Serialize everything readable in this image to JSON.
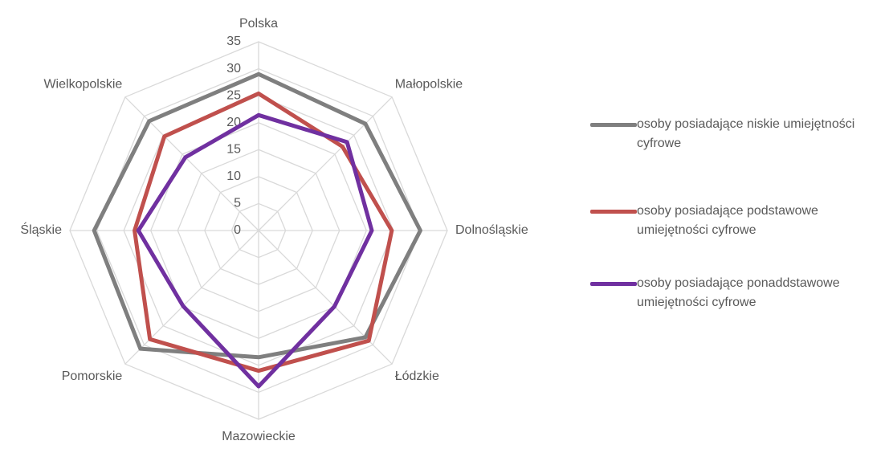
{
  "chart_data": {
    "type": "radar",
    "categories": [
      "Polska",
      "Małopolskie",
      "Dolnośląskie",
      "Łódzkie",
      "Mazowieckie",
      "Pomorskie",
      "Śląskie",
      "Wielkopolskie"
    ],
    "series": [
      {
        "name": "osoby posiadające niskie umiejętności cyfrowe",
        "color": "#7f7f7f",
        "values": [
          29,
          28,
          30,
          28,
          23.5,
          31,
          30.5,
          28.7
        ]
      },
      {
        "name": "osoby posiadające podstawowe umiejętności cyfrowe",
        "color": "#c0504d",
        "values": [
          25.4,
          22,
          24.7,
          28.9,
          26,
          28.5,
          23,
          24.7
        ]
      },
      {
        "name": "osoby posiadające ponaddstawowe umiejętności cyfrowe",
        "color": "#7030a0",
        "values": [
          21.4,
          23.2,
          21,
          19.9,
          28.9,
          19.8,
          22.3,
          19.2
        ]
      }
    ],
    "ylim": [
      0,
      35
    ],
    "yticks": [
      0,
      5,
      10,
      15,
      20,
      25,
      30,
      35
    ],
    "grid": true,
    "legend": "right"
  }
}
